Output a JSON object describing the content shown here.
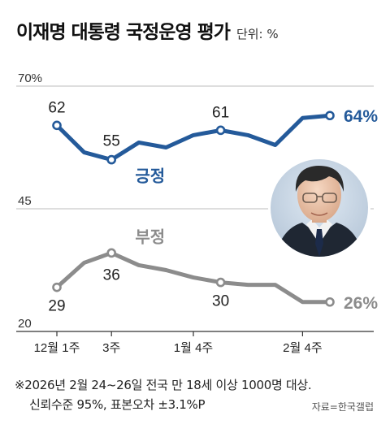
{
  "header": {
    "title": "이재명 대통령 국정운영 평가",
    "unit": "단위: %"
  },
  "colors": {
    "positive": "#245a9a",
    "negative": "#8c8c8c",
    "axis": "#333333",
    "grid": "#bdbdbd"
  },
  "portrait": {
    "icon": "politician-portrait"
  },
  "chart_data": {
    "type": "line",
    "ylim": [
      20,
      70
    ],
    "y_ticks": [
      "70%",
      "45",
      "20"
    ],
    "x_tick_labels": [
      "12월 1주",
      "3주",
      "1월 4주",
      "2월 4주"
    ],
    "grid": "horizontal lines at y ticks",
    "series": [
      {
        "name": "긍정",
        "values": [
          62,
          56.5,
          55,
          58.5,
          57.5,
          60,
          61,
          60,
          58,
          63.5,
          64
        ],
        "labels": [
          {
            "index": 0,
            "text": "62"
          },
          {
            "index": 2,
            "text": "55"
          },
          {
            "index": 6,
            "text": "61"
          },
          {
            "index": 10,
            "text": "64%"
          }
        ]
      },
      {
        "name": "부정",
        "values": [
          29,
          34,
          36,
          33.5,
          32.5,
          31,
          30,
          29.5,
          29.5,
          26,
          26
        ],
        "labels": [
          {
            "index": 0,
            "text": "29"
          },
          {
            "index": 2,
            "text": "36"
          },
          {
            "index": 6,
            "text": "30"
          },
          {
            "index": 10,
            "text": "26%"
          }
        ]
      }
    ]
  },
  "footnote": {
    "line1": "※2026년 2월 24~26일 전국 만 18세 이상 1000명 대상.",
    "line2": "신뢰수준 95%, 표본오차 ±3.1%P"
  },
  "source": "자료=한국갤럽"
}
